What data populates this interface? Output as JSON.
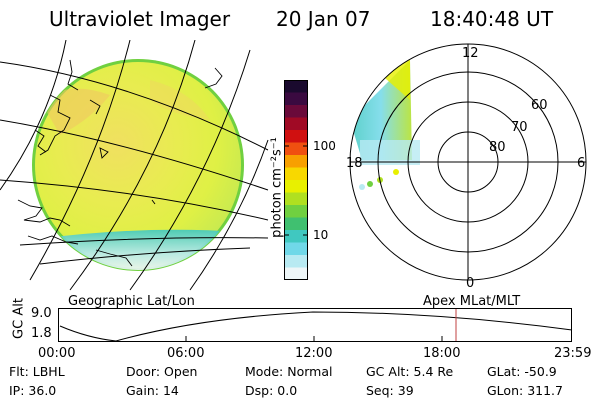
{
  "header": {
    "instrument": "Ultraviolet Imager",
    "date": "20 Jan 07",
    "time": "18:40:48 UT"
  },
  "colorbar": {
    "unit_label": "photon cm⁻²s⁻¹",
    "ticks": [
      "100",
      "10"
    ],
    "colors": [
      "#1a0a2e",
      "#3a0a40",
      "#6a0a3a",
      "#a00a25",
      "#d01010",
      "#f05010",
      "#f8a000",
      "#f8d800",
      "#e8f000",
      "#b0e020",
      "#70d040",
      "#40c070",
      "#40c8c0",
      "#70d8e8",
      "#b8eaf2",
      "#eef6f8"
    ]
  },
  "polar_plot": {
    "mlt_labels": [
      "12",
      "6",
      "0",
      "18"
    ],
    "lat_labels": [
      "60",
      "70",
      "80"
    ]
  },
  "lower_labels": {
    "left": "Geographic Lat/Lon",
    "right": "Apex MLat/MLT"
  },
  "orbit_plot": {
    "ylabel": "GC Alt",
    "y_ticks": [
      "9.0",
      "1.8"
    ],
    "x_ticks": [
      "00:00",
      "06:00",
      "12:00",
      "18:00",
      "23:59"
    ],
    "marker_time": "18:40:48"
  },
  "info": {
    "row1": [
      {
        "label": "Flt:",
        "value": "LBHL"
      },
      {
        "label": "Door:",
        "value": "Open"
      },
      {
        "label": "Mode:",
        "value": "Normal"
      },
      {
        "label": "GC Alt:",
        "value": "5.4 Re"
      },
      {
        "label": "GLat:",
        "value": "-50.9"
      }
    ],
    "row2": [
      {
        "label": "IP:",
        "value": "36.0"
      },
      {
        "label": "Gain:",
        "value": "14"
      },
      {
        "label": "Dsp:",
        "value": "0.0"
      },
      {
        "label": "Seq:",
        "value": "39"
      },
      {
        "label": "GLon:",
        "value": "311.7"
      }
    ]
  },
  "accent_colors": {
    "marker": "#c04040",
    "grid": "#000000"
  }
}
